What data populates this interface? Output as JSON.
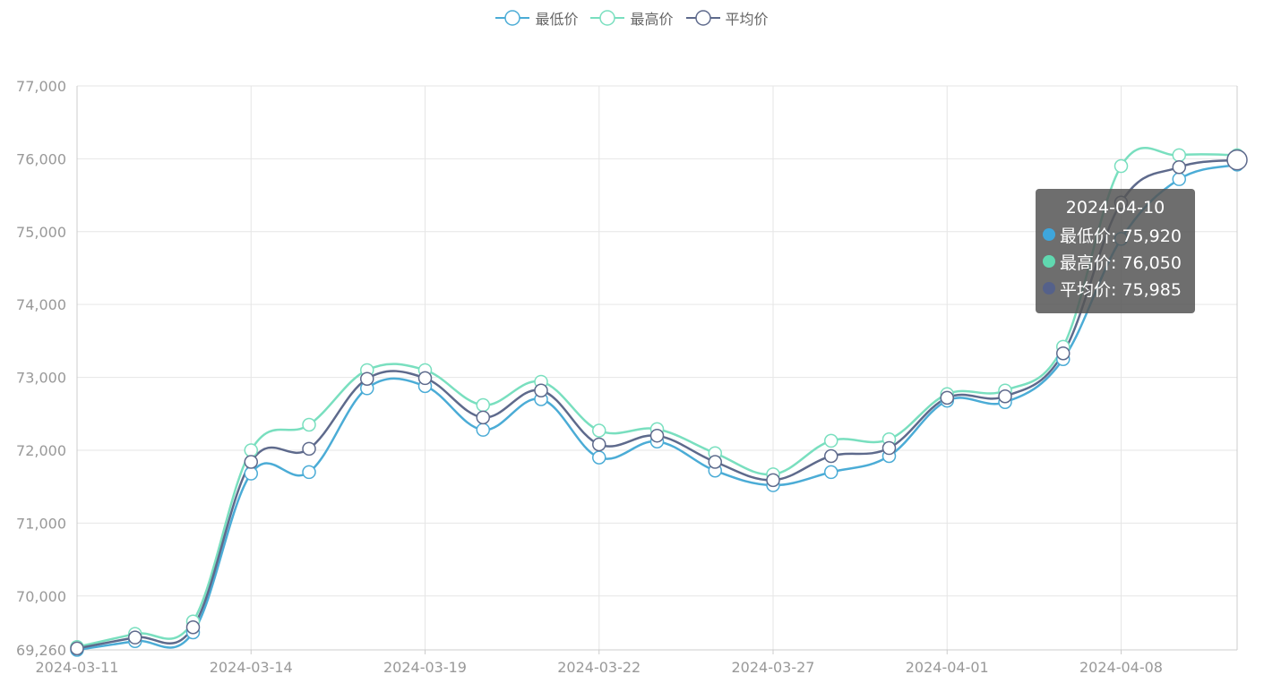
{
  "legend": [
    {
      "label": "最低价",
      "color": "#4bacd6",
      "icon": "circle-line-icon"
    },
    {
      "label": "最高价",
      "color": "#79dfbf",
      "icon": "circle-line-icon"
    },
    {
      "label": "平均价",
      "color": "#5e6a8c",
      "icon": "circle-line-icon"
    }
  ],
  "tooltip": {
    "title": "2024-04-10",
    "rows": [
      {
        "label": "最低价: 75,920",
        "color": "#3ea6dc"
      },
      {
        "label": "最高价: 76,050",
        "color": "#60d8b0"
      },
      {
        "label": "平均价: 75,985",
        "color": "#55618a"
      }
    ]
  },
  "chart_data": {
    "type": "line",
    "smooth": true,
    "categories": [
      "2024-03-11",
      "2024-03-12",
      "2024-03-13",
      "2024-03-14",
      "2024-03-15",
      "2024-03-18",
      "2024-03-19",
      "2024-03-20",
      "2024-03-21",
      "2024-03-22",
      "2024-03-25",
      "2024-03-26",
      "2024-03-27",
      "2024-03-28",
      "2024-03-29",
      "2024-04-01",
      "2024-04-02",
      "2024-04-03",
      "2024-04-08",
      "2024-04-09",
      "2024-04-10"
    ],
    "x_tick_labels": [
      "2024-03-11",
      "2024-03-14",
      "2024-03-19",
      "2024-03-22",
      "2024-03-27",
      "2024-04-01",
      "2024-04-08"
    ],
    "x_tick_indices": [
      0,
      3,
      6,
      9,
      12,
      15,
      18
    ],
    "ylim": [
      69260,
      77000
    ],
    "y_ticks": [
      69260,
      70000,
      71000,
      72000,
      73000,
      74000,
      75000,
      76000,
      77000
    ],
    "y_tick_labels": [
      "69,260",
      "70,000",
      "71,000",
      "72,000",
      "73,000",
      "74,000",
      "75,000",
      "76,000",
      "77,000"
    ],
    "grid": true,
    "legend_position": "top-center",
    "series": [
      {
        "name": "最低价",
        "color": "#4bacd6",
        "values": [
          69260,
          69380,
          69500,
          71680,
          71700,
          72850,
          72880,
          72280,
          72700,
          71900,
          72120,
          71720,
          71520,
          71700,
          71920,
          72680,
          72660,
          73250,
          74900,
          75720,
          75920
        ]
      },
      {
        "name": "最高价",
        "color": "#79dfbf",
        "values": [
          69300,
          69480,
          69650,
          72000,
          72350,
          73100,
          73100,
          72620,
          72940,
          72270,
          72290,
          71960,
          71670,
          72130,
          72150,
          72770,
          72820,
          73420,
          75900,
          76050,
          76050
        ]
      },
      {
        "name": "平均价",
        "color": "#5e6a8c",
        "values": [
          69280,
          69430,
          69570,
          71840,
          72020,
          72980,
          72990,
          72450,
          72820,
          72080,
          72200,
          71840,
          71590,
          71920,
          72030,
          72720,
          72740,
          73330,
          75400,
          75885,
          75985
        ]
      }
    ]
  }
}
